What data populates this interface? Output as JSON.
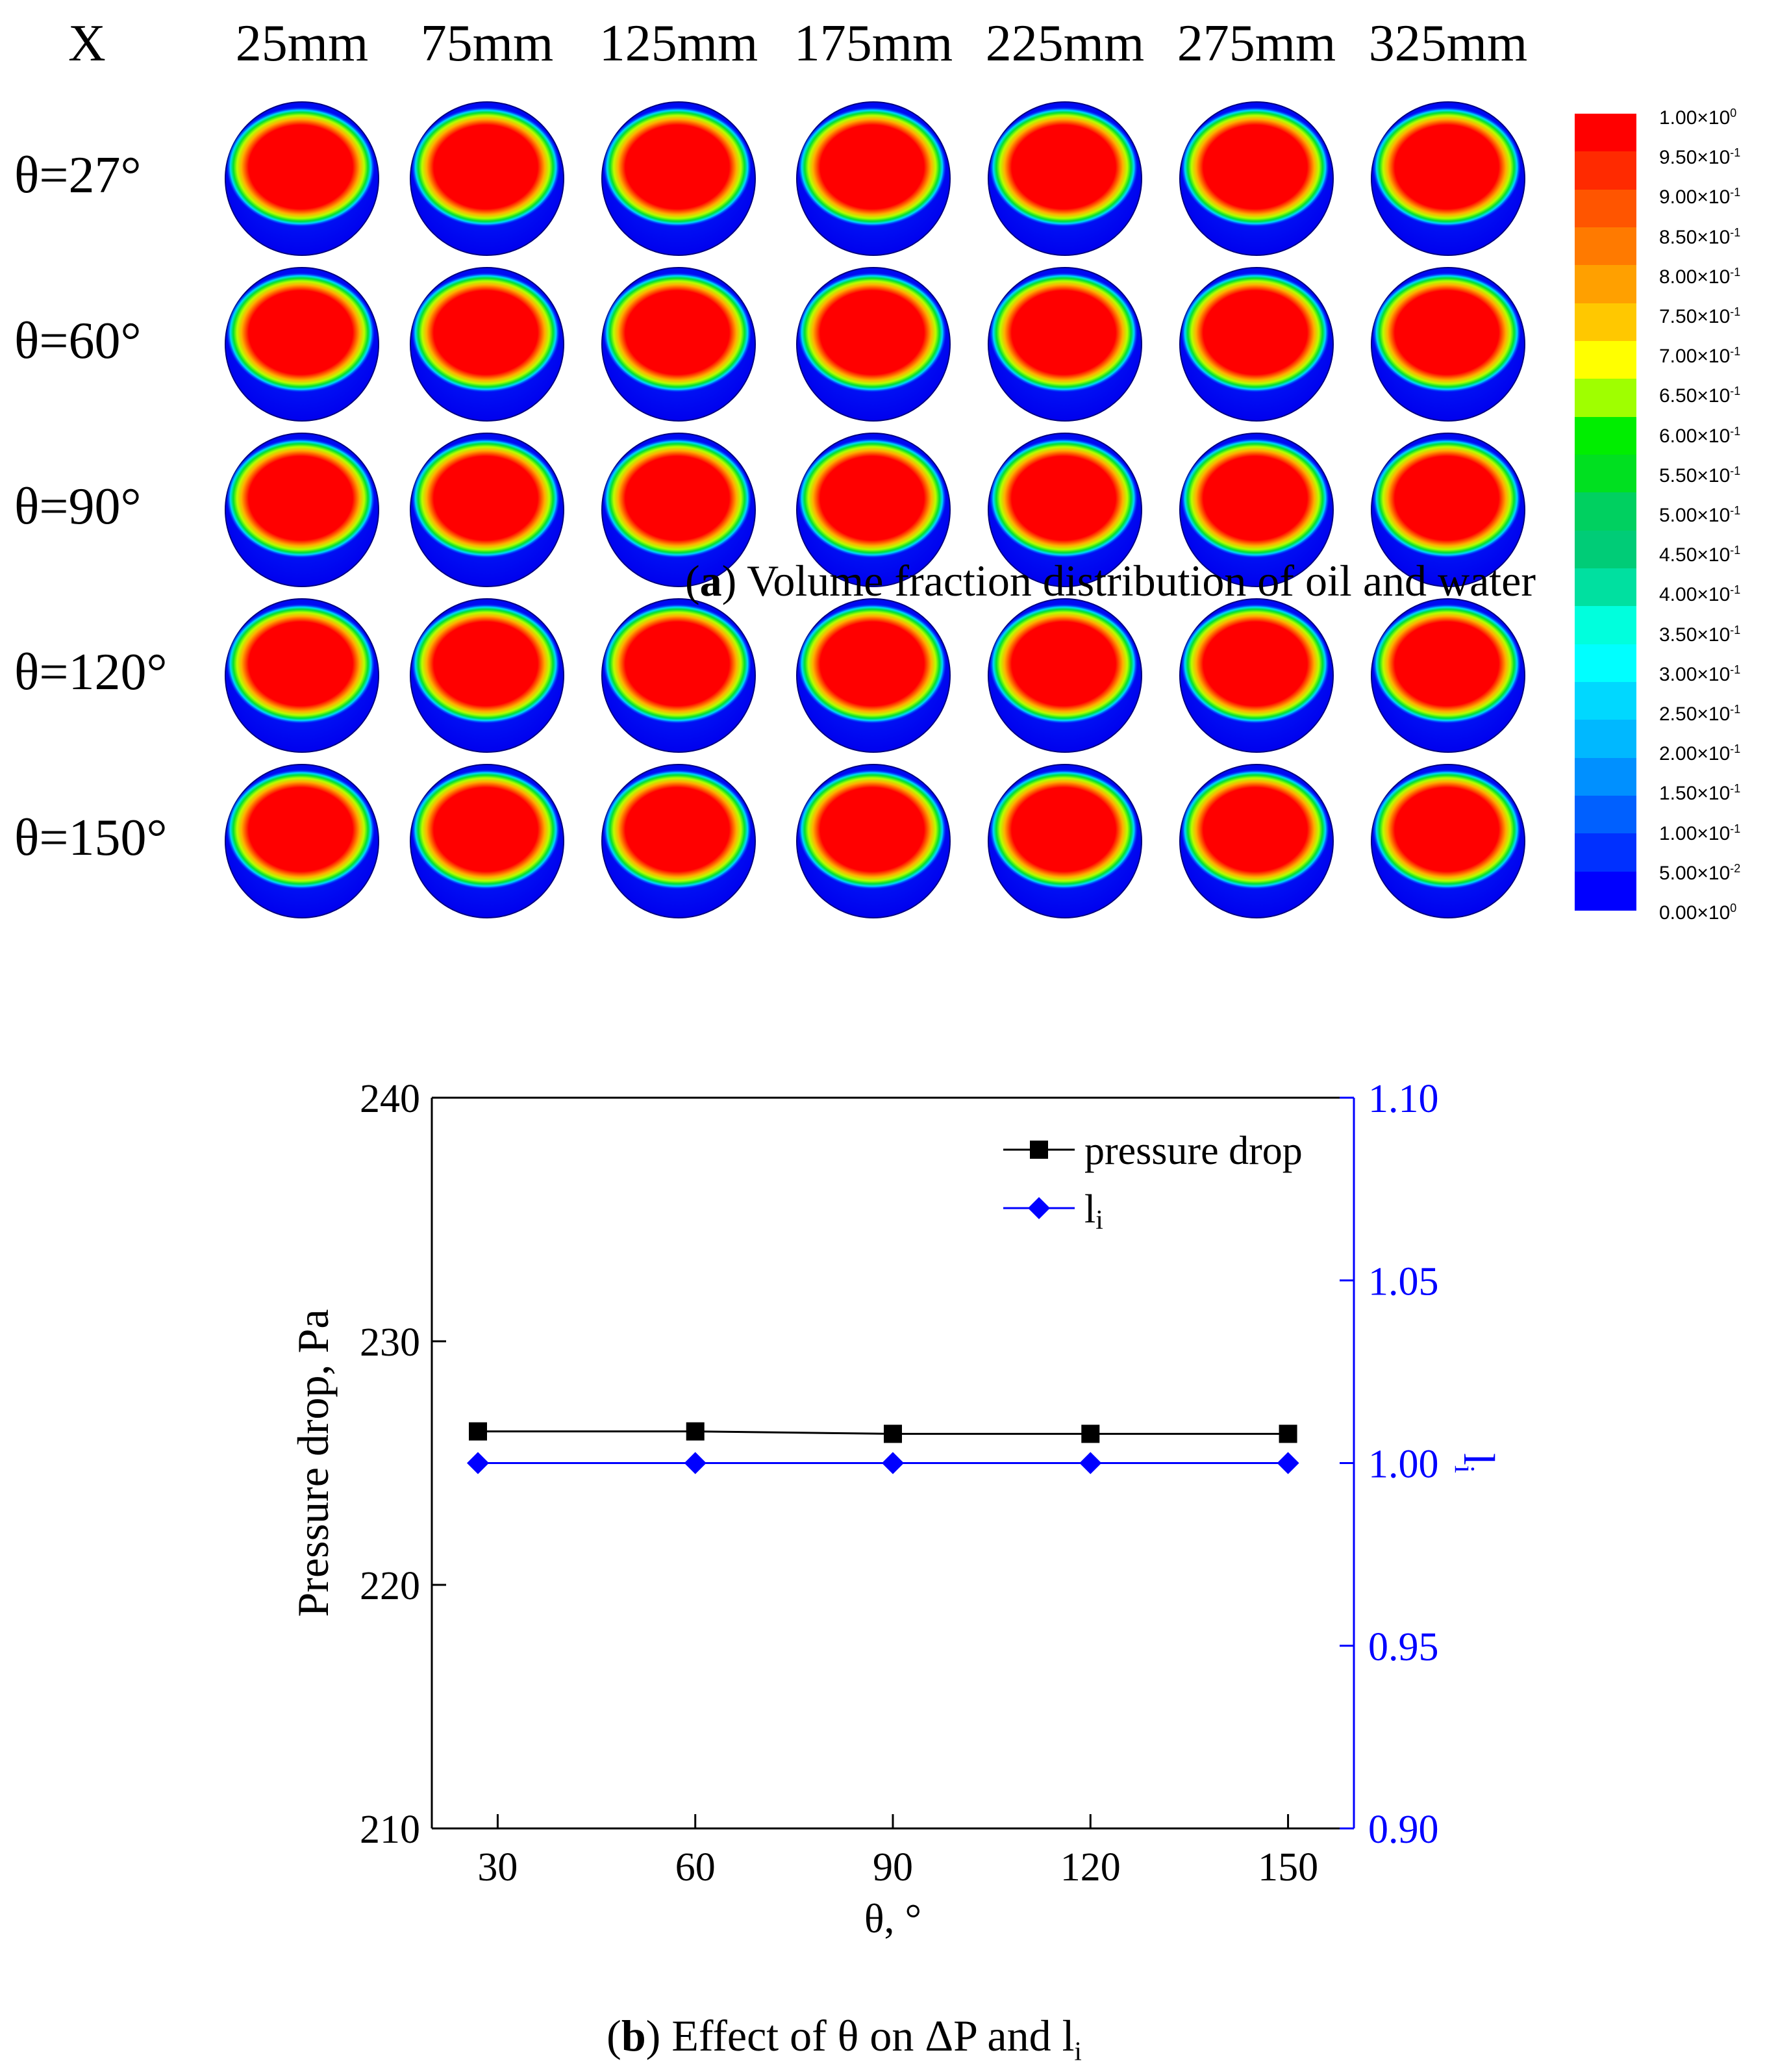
{
  "panel_a": {
    "corner_label": "X",
    "x_positions": [
      "25mm",
      "75mm",
      "125mm",
      "175mm",
      "225mm",
      "275mm",
      "325mm"
    ],
    "angles": [
      "θ=27°",
      "θ=60°",
      "θ=90°",
      "θ=120°",
      "θ=150°"
    ],
    "colorbar_labels": [
      {
        "m": "1.00×10",
        "e": "0"
      },
      {
        "m": "9.50×10",
        "e": "-1"
      },
      {
        "m": "9.00×10",
        "e": "-1"
      },
      {
        "m": "8.50×10",
        "e": "-1"
      },
      {
        "m": "8.00×10",
        "e": "-1"
      },
      {
        "m": "7.50×10",
        "e": "-1"
      },
      {
        "m": "7.00×10",
        "e": "-1"
      },
      {
        "m": "6.50×10",
        "e": "-1"
      },
      {
        "m": "6.00×10",
        "e": "-1"
      },
      {
        "m": "5.50×10",
        "e": "-1"
      },
      {
        "m": "5.00×10",
        "e": "-1"
      },
      {
        "m": "4.50×10",
        "e": "-1"
      },
      {
        "m": "4.00×10",
        "e": "-1"
      },
      {
        "m": "3.50×10",
        "e": "-1"
      },
      {
        "m": "3.00×10",
        "e": "-1"
      },
      {
        "m": "2.50×10",
        "e": "-1"
      },
      {
        "m": "2.00×10",
        "e": "-1"
      },
      {
        "m": "1.50×10",
        "e": "-1"
      },
      {
        "m": "1.00×10",
        "e": "-1"
      },
      {
        "m": "5.00×10",
        "e": "-2"
      },
      {
        "m": "0.00×10",
        "e": "0"
      }
    ],
    "colorbar_colors": [
      "#ff0000",
      "#ff2a00",
      "#ff5500",
      "#ff7a00",
      "#ffa000",
      "#ffc800",
      "#ffff00",
      "#9fff00",
      "#00ee00",
      "#00e020",
      "#00d060",
      "#00cc77",
      "#00e0a0",
      "#00ffdd",
      "#00ffff",
      "#00d8ff",
      "#00b8ff",
      "#0090ff",
      "#0060ff",
      "#0030ff",
      "#0000ff"
    ],
    "caption_letter": "a",
    "caption_text": " Volume fraction distribution of oil and water"
  },
  "chart_data": {
    "type": "line",
    "x": [
      27,
      60,
      90,
      120,
      150
    ],
    "xlabel": "θ, °",
    "xticks": [
      "30",
      "60",
      "90",
      "120",
      "150"
    ],
    "xlim": [
      20,
      160
    ],
    "ylabel_left": "Pressure drop, Pa",
    "ylim_left": [
      210,
      240
    ],
    "yticks_left": [
      "210",
      "220",
      "230",
      "240"
    ],
    "ylabel_right": "l",
    "ylabel_right_sub": "i",
    "ylim_right": [
      0.9,
      1.1
    ],
    "yticks_right": [
      "0.90",
      "0.95",
      "1.00",
      "1.05",
      "1.10"
    ],
    "series": [
      {
        "name": "pressure drop",
        "axis": "left",
        "color": "#000000",
        "marker": "square",
        "values": [
          226.3,
          226.3,
          226.2,
          226.2,
          226.2
        ]
      },
      {
        "name": "l",
        "name_sub": "i",
        "axis": "right",
        "color": "#0000ff",
        "marker": "diamond",
        "values": [
          1.0,
          1.0,
          1.0,
          1.0,
          1.0
        ]
      }
    ],
    "legend_position": "top-right"
  },
  "panel_b": {
    "caption_letter": "b",
    "caption_text": " Effect of θ on ΔP and l",
    "caption_sub": "i"
  }
}
